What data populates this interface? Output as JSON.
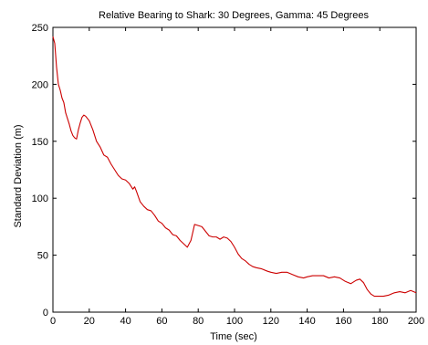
{
  "chart_data": {
    "type": "line",
    "title": "Relative Bearing to Shark: 30 Degrees, Gamma: 45 Degrees",
    "xlabel": "Time (sec)",
    "ylabel": "Standard Deviation (m)",
    "xlim": [
      0,
      200
    ],
    "ylim": [
      0,
      250
    ],
    "xticks": [
      0,
      20,
      40,
      60,
      80,
      100,
      120,
      140,
      160,
      180,
      200
    ],
    "yticks": [
      0,
      50,
      100,
      150,
      200,
      250
    ],
    "grid": false,
    "legend": "none",
    "series": [
      {
        "color": "#cc0000",
        "x": [
          0,
          1,
          2,
          3,
          4,
          5,
          6,
          7,
          8,
          9,
          10,
          11,
          12,
          13,
          14,
          15,
          16,
          17,
          18,
          19,
          20,
          22,
          24,
          26,
          28,
          30,
          32,
          34,
          36,
          38,
          40,
          42,
          44,
          45,
          46,
          48,
          50,
          52,
          54,
          56,
          58,
          60,
          62,
          64,
          66,
          68,
          70,
          72,
          74,
          76,
          78,
          80,
          82,
          84,
          86,
          88,
          90,
          92,
          94,
          96,
          98,
          100,
          102,
          104,
          106,
          108,
          110,
          112,
          115,
          118,
          120,
          123,
          126,
          129,
          132,
          135,
          138,
          140,
          143,
          146,
          149,
          152,
          155,
          158,
          161,
          164,
          167,
          169,
          171,
          173,
          175,
          177,
          179,
          182,
          185,
          188,
          191,
          194,
          197,
          200
        ],
        "y": [
          242,
          236,
          215,
          200,
          195,
          188,
          184,
          175,
          170,
          165,
          159,
          155,
          153,
          152,
          160,
          166,
          171,
          173,
          172,
          170,
          168,
          160,
          150,
          145,
          138,
          136,
          130,
          125,
          120,
          117,
          116,
          113,
          108,
          110,
          106,
          97,
          93,
          90,
          89,
          85,
          80,
          78,
          74,
          72,
          68,
          67,
          63,
          60,
          57,
          63,
          77,
          76,
          75,
          71,
          67,
          66,
          66,
          64,
          66,
          65,
          62,
          57,
          51,
          47,
          45,
          42,
          40,
          39,
          38,
          36,
          35,
          34,
          35,
          35,
          33,
          31,
          30,
          31,
          32,
          32,
          32,
          30,
          31,
          30,
          27,
          25,
          28,
          29,
          26,
          20,
          16,
          14,
          14,
          14,
          15,
          17,
          18,
          17,
          19,
          17
        ]
      }
    ]
  }
}
